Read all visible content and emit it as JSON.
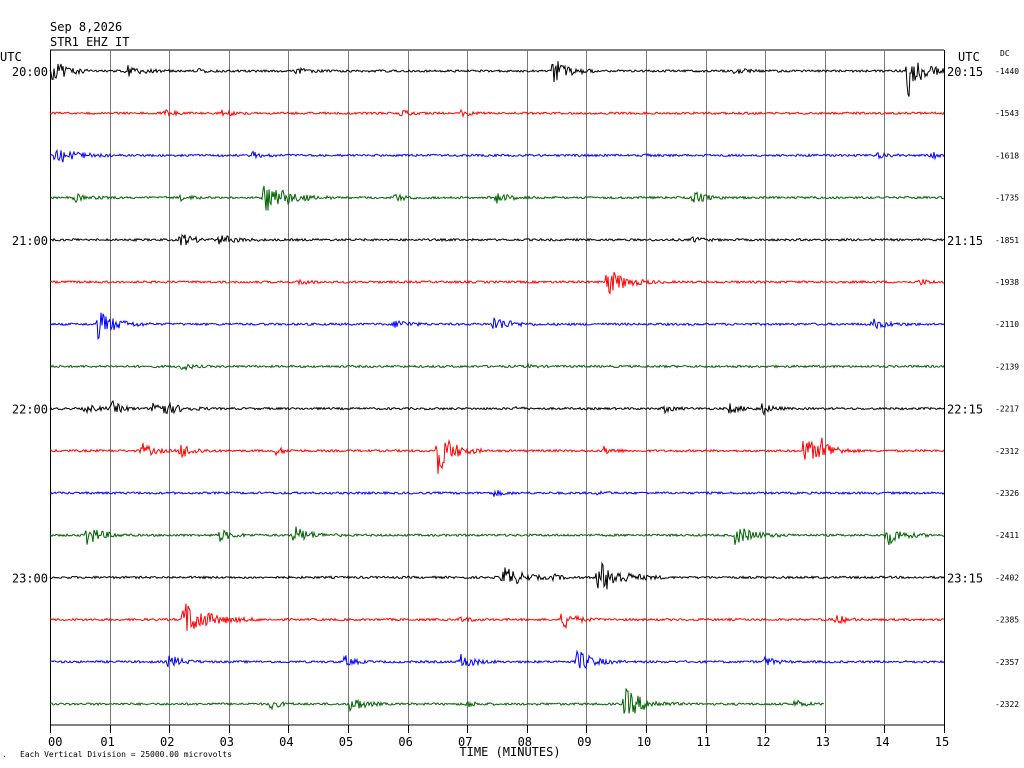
{
  "header": {
    "date": "Sep 8,2026",
    "station": "STR1 EHZ IT"
  },
  "labels": {
    "utc_left": "UTC",
    "utc_right": "UTC",
    "dc": "DC",
    "xlabel": "TIME (MINUTES)",
    "scale_note": "Each Vertical Division = 25000.00 microvolts",
    "corner_mark": "."
  },
  "chart_data": {
    "type": "line",
    "title": "",
    "xlabel": "TIME (MINUTES)",
    "ylabel": "",
    "x_ticks": [
      "00",
      "01",
      "02",
      "03",
      "04",
      "05",
      "06",
      "07",
      "08",
      "09",
      "10",
      "11",
      "12",
      "13",
      "14",
      "15"
    ],
    "xlim": [
      0,
      15
    ],
    "grid": true,
    "colors": [
      "#000000",
      "#ff0000",
      "#0000ff",
      "#006400"
    ],
    "traces": [
      {
        "left": "20:00",
        "right": "20:15",
        "dc": "-1440",
        "color": "#000000",
        "end_min": 15,
        "events": [
          [
            0.05,
            12,
            0.5
          ],
          [
            1.3,
            5,
            0.5
          ],
          [
            2.45,
            3,
            0.3
          ],
          [
            4.15,
            4,
            0.3
          ],
          [
            8.45,
            13,
            0.5
          ],
          [
            11.5,
            4,
            0.3
          ],
          [
            14.4,
            26,
            0.5
          ]
        ]
      },
      {
        "left": "",
        "right": "",
        "dc": "-1543",
        "color": "#ff0000",
        "end_min": 15,
        "events": [
          [
            1.95,
            3,
            0.3
          ],
          [
            2.9,
            4,
            0.3
          ],
          [
            5.9,
            3,
            0.3
          ],
          [
            6.9,
            3,
            0.3
          ]
        ]
      },
      {
        "left": "",
        "right": "",
        "dc": "-1618",
        "color": "#0000ff",
        "end_min": 15,
        "events": [
          [
            0.1,
            10,
            0.6
          ],
          [
            3.4,
            3,
            0.3
          ],
          [
            10.0,
            2,
            0.2
          ],
          [
            13.9,
            3,
            0.3
          ],
          [
            14.8,
            3,
            0.3
          ]
        ]
      },
      {
        "left": "",
        "right": "",
        "dc": "-1735",
        "color": "#006400",
        "end_min": 15,
        "events": [
          [
            0.4,
            5,
            0.4
          ],
          [
            2.2,
            3,
            0.3
          ],
          [
            3.6,
            18,
            0.7
          ],
          [
            5.8,
            4,
            0.3
          ],
          [
            7.5,
            5,
            0.4
          ],
          [
            10.8,
            6,
            0.4
          ]
        ]
      },
      {
        "left": "21:00",
        "right": "21:15",
        "dc": "-1851",
        "color": "#000000",
        "end_min": 15,
        "events": [
          [
            2.2,
            7,
            0.4
          ],
          [
            2.85,
            5,
            0.5
          ],
          [
            10.8,
            3,
            0.3
          ]
        ]
      },
      {
        "left": "",
        "right": "",
        "dc": "-1938",
        "color": "#ff0000",
        "end_min": 15,
        "events": [
          [
            4.2,
            3,
            0.3
          ],
          [
            9.35,
            14,
            0.6
          ],
          [
            14.6,
            3,
            0.3
          ]
        ]
      },
      {
        "left": "",
        "right": "",
        "dc": "-2110",
        "color": "#0000ff",
        "end_min": 15,
        "events": [
          [
            0.8,
            14,
            0.6
          ],
          [
            5.8,
            5,
            0.4
          ],
          [
            7.45,
            8,
            0.5
          ],
          [
            13.8,
            5,
            0.5
          ]
        ]
      },
      {
        "left": "",
        "right": "",
        "dc": "-2139",
        "color": "#006400",
        "end_min": 15,
        "events": [
          [
            2.2,
            4,
            0.3
          ],
          [
            8.0,
            2,
            0.2
          ]
        ]
      },
      {
        "left": "22:00",
        "right": "22:15",
        "dc": "-2217",
        "color": "#000000",
        "end_min": 15,
        "events": [
          [
            0.6,
            4,
            0.4
          ],
          [
            1.05,
            7,
            0.3
          ],
          [
            1.75,
            11,
            0.6
          ],
          [
            7.8,
            2,
            0.2
          ],
          [
            10.3,
            4,
            0.3
          ],
          [
            11.4,
            5,
            0.4
          ],
          [
            11.95,
            6,
            0.3
          ]
        ]
      },
      {
        "left": "",
        "right": "",
        "dc": "-2312",
        "color": "#ff0000",
        "end_min": 15,
        "events": [
          [
            1.55,
            7,
            0.4
          ],
          [
            2.2,
            8,
            0.4
          ],
          [
            3.8,
            4,
            0.3
          ],
          [
            6.5,
            24,
            0.5
          ],
          [
            9.3,
            4,
            0.3
          ],
          [
            12.65,
            14,
            0.6
          ],
          [
            12.95,
            14,
            0.4
          ]
        ]
      },
      {
        "left": "",
        "right": "",
        "dc": "-2326",
        "color": "#0000ff",
        "end_min": 15,
        "events": [
          [
            7.45,
            3,
            0.3
          ],
          [
            9.2,
            2,
            0.2
          ]
        ]
      },
      {
        "left": "",
        "right": "",
        "dc": "-2411",
        "color": "#006400",
        "end_min": 15,
        "events": [
          [
            0.6,
            11,
            0.5
          ],
          [
            2.85,
            6,
            0.4
          ],
          [
            4.1,
            9,
            0.5
          ],
          [
            11.5,
            10,
            0.6
          ],
          [
            14.05,
            10,
            0.5
          ]
        ]
      },
      {
        "left": "23:00",
        "right": "23:15",
        "dc": "-2402",
        "color": "#000000",
        "end_min": 15,
        "events": [
          [
            7.6,
            12,
            0.6
          ],
          [
            8.45,
            3,
            0.3
          ],
          [
            9.2,
            18,
            0.7
          ]
        ]
      },
      {
        "left": "",
        "right": "",
        "dc": "-2385",
        "color": "#ff0000",
        "end_min": 15,
        "events": [
          [
            2.25,
            18,
            0.8
          ],
          [
            6.9,
            3,
            0.3
          ],
          [
            8.6,
            10,
            0.4
          ],
          [
            13.2,
            5,
            0.3
          ]
        ]
      },
      {
        "left": "",
        "right": "",
        "dc": "-2357",
        "color": "#0000ff",
        "end_min": 15,
        "events": [
          [
            2.0,
            7,
            0.4
          ],
          [
            4.95,
            6,
            0.3
          ],
          [
            6.9,
            8,
            0.4
          ],
          [
            8.85,
            12,
            0.5
          ],
          [
            12.0,
            5,
            0.3
          ]
        ]
      },
      {
        "left": "",
        "right": "",
        "dc": "-2322",
        "color": "#006400",
        "end_min": 13,
        "events": [
          [
            3.7,
            5,
            0.3
          ],
          [
            5.05,
            9,
            0.4
          ],
          [
            7.0,
            3,
            0.3
          ],
          [
            9.65,
            16,
            0.6
          ],
          [
            12.5,
            4,
            0.3
          ]
        ]
      }
    ]
  }
}
